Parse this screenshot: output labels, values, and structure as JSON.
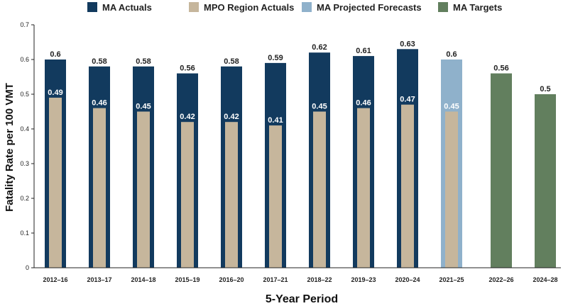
{
  "chart_data": {
    "type": "bar",
    "title": "",
    "xlabel": "5-Year Period",
    "ylabel": "Fatality Rate per 100 VMT",
    "ylim": [
      0,
      0.7
    ],
    "yticks": [
      0,
      0.1,
      0.2,
      0.3,
      0.4,
      0.5,
      0.6,
      0.7
    ],
    "ytick_labels": [
      "0",
      "0.1",
      "0.2",
      "0.3",
      "0.4",
      "0.5",
      "0.6",
      "0.7"
    ],
    "categories": [
      "2012–16",
      "2013–17",
      "2014–18",
      "2015–19",
      "2016–20",
      "2017–21",
      "2018–22",
      "2019–23",
      "2020–24",
      "2021–25",
      "2022–26",
      "2024–28"
    ],
    "legend_position": "top",
    "series": [
      {
        "name": "MA Actuals",
        "color": "#123a5e",
        "values": [
          0.6,
          0.58,
          0.58,
          0.56,
          0.58,
          0.59,
          0.62,
          0.61,
          0.63,
          null,
          null,
          null
        ],
        "labels": [
          "0.6",
          "0.58",
          "0.58",
          "0.56",
          "0.58",
          "0.59",
          "0.62",
          "0.61",
          "0.63",
          "",
          "",
          ""
        ]
      },
      {
        "name": "MPO Region Actuals",
        "color": "#c6b69c",
        "values": [
          0.49,
          0.46,
          0.45,
          0.42,
          0.42,
          0.41,
          0.45,
          0.46,
          0.47,
          0.45,
          null,
          null
        ],
        "labels": [
          "0.49",
          "0.46",
          "0.45",
          "0.42",
          "0.42",
          "0.41",
          "0.45",
          "0.46",
          "0.47",
          "0.45",
          "",
          ""
        ]
      },
      {
        "name": "MA Projected Forecasts",
        "color": "#8fb1cb",
        "values": [
          null,
          null,
          null,
          null,
          null,
          null,
          null,
          null,
          null,
          0.6,
          null,
          null
        ],
        "labels": [
          "",
          "",
          "",
          "",
          "",
          "",
          "",
          "",
          "",
          "0.6",
          "",
          ""
        ]
      },
      {
        "name": "MA Targets",
        "color": "#627f5e",
        "values": [
          null,
          null,
          null,
          null,
          null,
          null,
          null,
          null,
          null,
          null,
          0.56,
          0.5
        ],
        "labels": [
          "",
          "",
          "",
          "",
          "",
          "",
          "",
          "",
          "",
          "",
          "0.56",
          "0.5"
        ]
      }
    ]
  }
}
